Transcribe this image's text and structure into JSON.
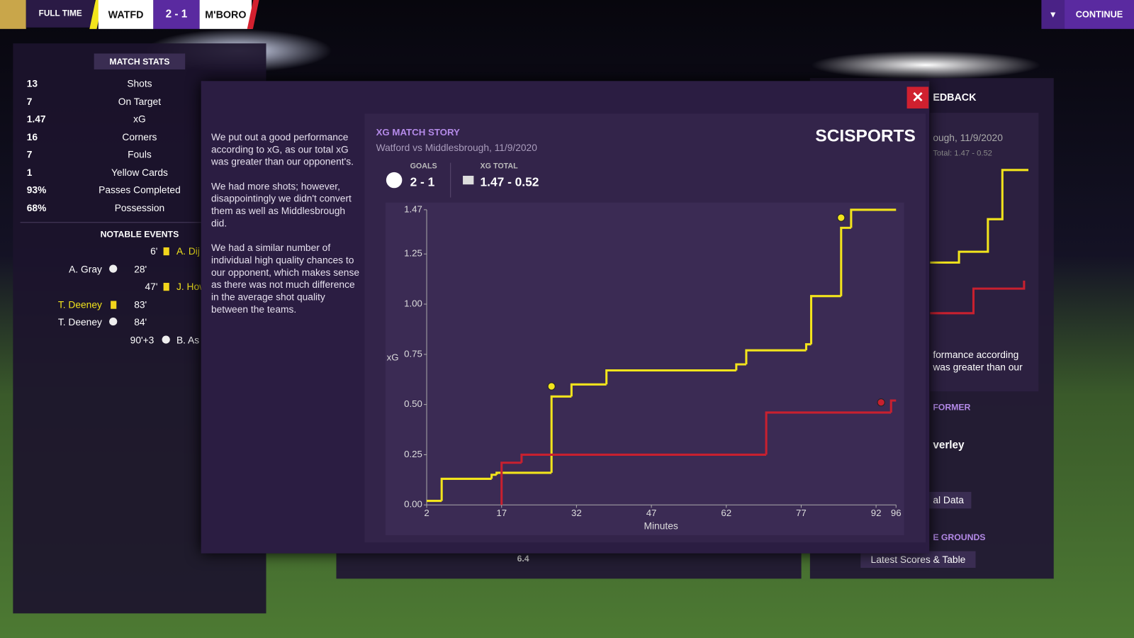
{
  "header": {
    "status": "FULL TIME",
    "home": "WATFD",
    "score": "2 - 1",
    "away": "M'BORO",
    "continue": "CONTINUE"
  },
  "match_stats": {
    "title": "MATCH STATS",
    "rows": [
      {
        "value": "13",
        "label": "Shots"
      },
      {
        "value": "7",
        "label": "On Target"
      },
      {
        "value": "1.47",
        "label": "xG"
      },
      {
        "value": "16",
        "label": "Corners"
      },
      {
        "value": "7",
        "label": "Fouls"
      },
      {
        "value": "1",
        "label": "Yellow Cards"
      },
      {
        "value": "93%",
        "label": "Passes Completed"
      },
      {
        "value": "68%",
        "label": "Possession"
      }
    ]
  },
  "notable_events": {
    "title": "NOTABLE EVENTS",
    "events": [
      {
        "minute": "6'",
        "away": "A. Dij"
      },
      {
        "home": "A. Gray",
        "minute": "28'"
      },
      {
        "minute": "47'",
        "away": "J. How"
      },
      {
        "home": "T. Deeney",
        "minute": "83'"
      },
      {
        "home": "T. Deeney",
        "minute": "84'"
      },
      {
        "minute": "90'+3",
        "away": "B. As"
      }
    ]
  },
  "feedback": {
    "paragraphs": [
      "We put out a good performance according to xG, as our total xG was greater than our opponent's.",
      "We had more shots; however, disappointingly we didn't convert them as well as Middlesbrough did.",
      "We had a similar number of individual high quality chances to our opponent, which makes sense as there was not much difference in the average shot quality between the teams."
    ]
  },
  "background_panel": {
    "title": "EDBACK",
    "subtitle": "ough, 11/9/2020",
    "total": "Total: 1.47 - 0.52",
    "text_1": "formance according",
    "text_2": "was greater than our",
    "performer": "FORMER",
    "player": "verley",
    "data_button": "al Data",
    "grounds": "E GROUNDS",
    "scores_button": "Latest Scores & Table",
    "rating": "6.4"
  },
  "chart_data": {
    "type": "step",
    "title": "XG MATCH STORY",
    "subtitle": "Watford vs Middlesbrough, 11/9/2020",
    "logo": "SCISPORTS",
    "goals_label": "GOALS",
    "goals": "2 - 1",
    "xg_label": "XG TOTAL",
    "xg_total": "1.47 - 0.52",
    "y_label": "xG",
    "x_label": "Minutes",
    "xlim": [
      2,
      96
    ],
    "xticks": [
      2,
      17,
      32,
      47,
      62,
      77,
      92,
      96
    ],
    "ylim": [
      0,
      1.47
    ],
    "yticks": [
      {
        "value": 0,
        "label": "0.00"
      },
      {
        "value": 0.25,
        "label": "0.25"
      },
      {
        "value": 0.5,
        "label": "0.50"
      },
      {
        "value": 0.75,
        "label": "0.75"
      },
      {
        "value": 1,
        "label": "1.00"
      },
      {
        "value": 1.25,
        "label": "1.25"
      },
      1.47
    ],
    "series": [
      {
        "name": "Watford",
        "color": "#f2e41c",
        "x": [
          2,
          5,
          15,
          16,
          27,
          31,
          38,
          64,
          66,
          78,
          79,
          85,
          87,
          96
        ],
        "values": [
          0.02,
          0.13,
          0.15,
          0.16,
          0.54,
          0.6,
          0.67,
          0.7,
          0.77,
          0.8,
          1.04,
          1.38,
          1.47,
          1.47
        ],
        "goal_minutes": [
          27,
          85
        ]
      },
      {
        "name": "Middlesbrough",
        "color": "#c8202f",
        "x": [
          17,
          17,
          21,
          70,
          95,
          96
        ],
        "values": [
          0,
          0.21,
          0.25,
          0.46,
          0.52,
          0.52
        ],
        "goal_minutes": [
          93
        ]
      }
    ]
  }
}
